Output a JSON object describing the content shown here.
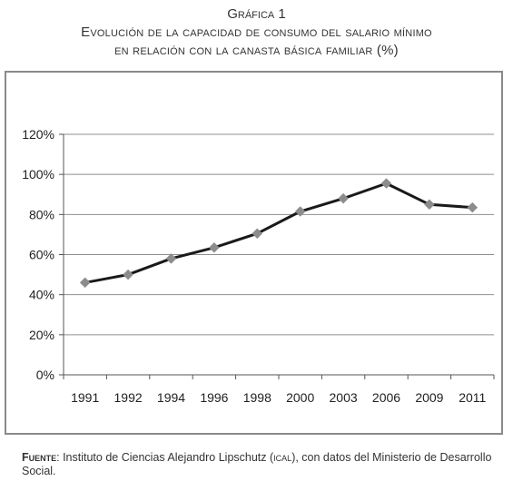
{
  "heading": {
    "number": "Gráfica 1",
    "title_line1": "Evolución de la capacidad de consumo del salario mínimo",
    "title_line2": "en relación con la canasta básica familiar (%)"
  },
  "chart_data": {
    "type": "line",
    "title": "",
    "xlabel": "",
    "ylabel": "",
    "categories": [
      "1991",
      "1992",
      "1994",
      "1996",
      "1998",
      "2000",
      "2003",
      "2006",
      "2009",
      "2011"
    ],
    "series": [
      {
        "values": [
          46,
          50,
          58,
          63.5,
          70.5,
          81.5,
          88,
          95.5,
          85,
          83.5
        ],
        "color": "#1a1a1a",
        "marker_color": "#8c8c8c",
        "marker": "diamond"
      }
    ],
    "ylim": [
      0,
      120
    ],
    "yticks": [
      0,
      20,
      40,
      60,
      80,
      100,
      120
    ],
    "ytick_labels": [
      "0%",
      "20%",
      "40%",
      "60%",
      "80%",
      "100%",
      "120%"
    ],
    "grid": true,
    "legend": "none"
  },
  "source": {
    "label": "Fuente",
    "text_before": ": Instituto de Ciencias Alejandro Lipschutz (",
    "acronym": "ical",
    "text_after": "), con datos del Ministerio de Desarrollo Social."
  }
}
